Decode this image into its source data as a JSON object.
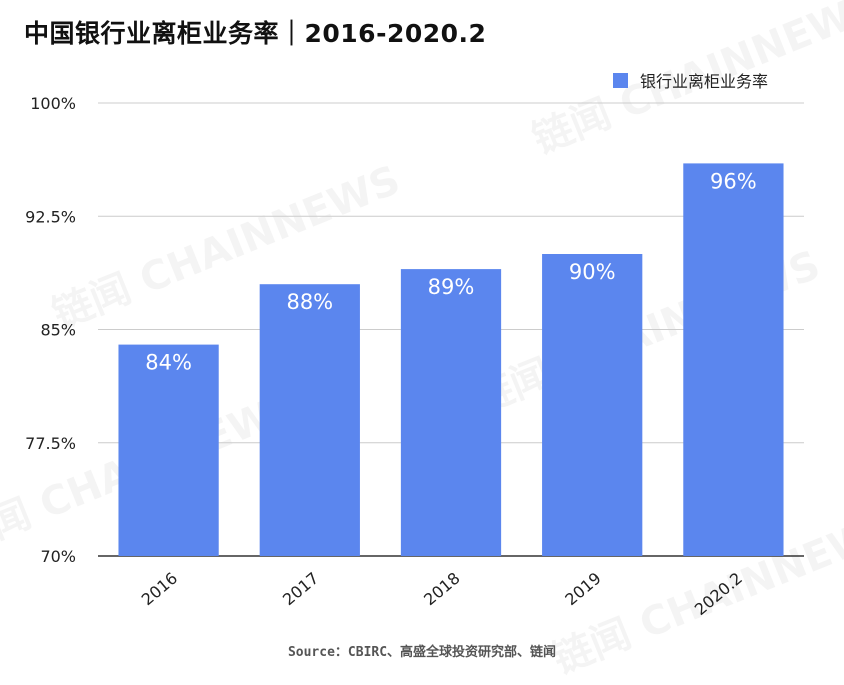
{
  "chart_data": {
    "type": "bar",
    "title": "中国银行业离柜业务率｜2016-2020.2",
    "categories": [
      "2016",
      "2017",
      "2018",
      "2019",
      "2020.2"
    ],
    "series": [
      {
        "name": "银行业离柜业务率",
        "values": [
          84,
          88,
          89,
          90,
          96
        ],
        "labels": [
          "84%",
          "88%",
          "89%",
          "90%",
          "96%"
        ],
        "color": "#5b86ee"
      }
    ],
    "ylim": [
      70,
      100
    ],
    "yticks": [
      70,
      77.5,
      85,
      92.5,
      100
    ],
    "ytick_labels": [
      "70%",
      "77.5%",
      "85%",
      "92.5%",
      "100%"
    ],
    "grid": true,
    "legend_position": "top-right"
  },
  "source": "Source：CBIRC、高盛全球投资研究部、链闻",
  "watermark": "链闻 CHAINNEWS"
}
